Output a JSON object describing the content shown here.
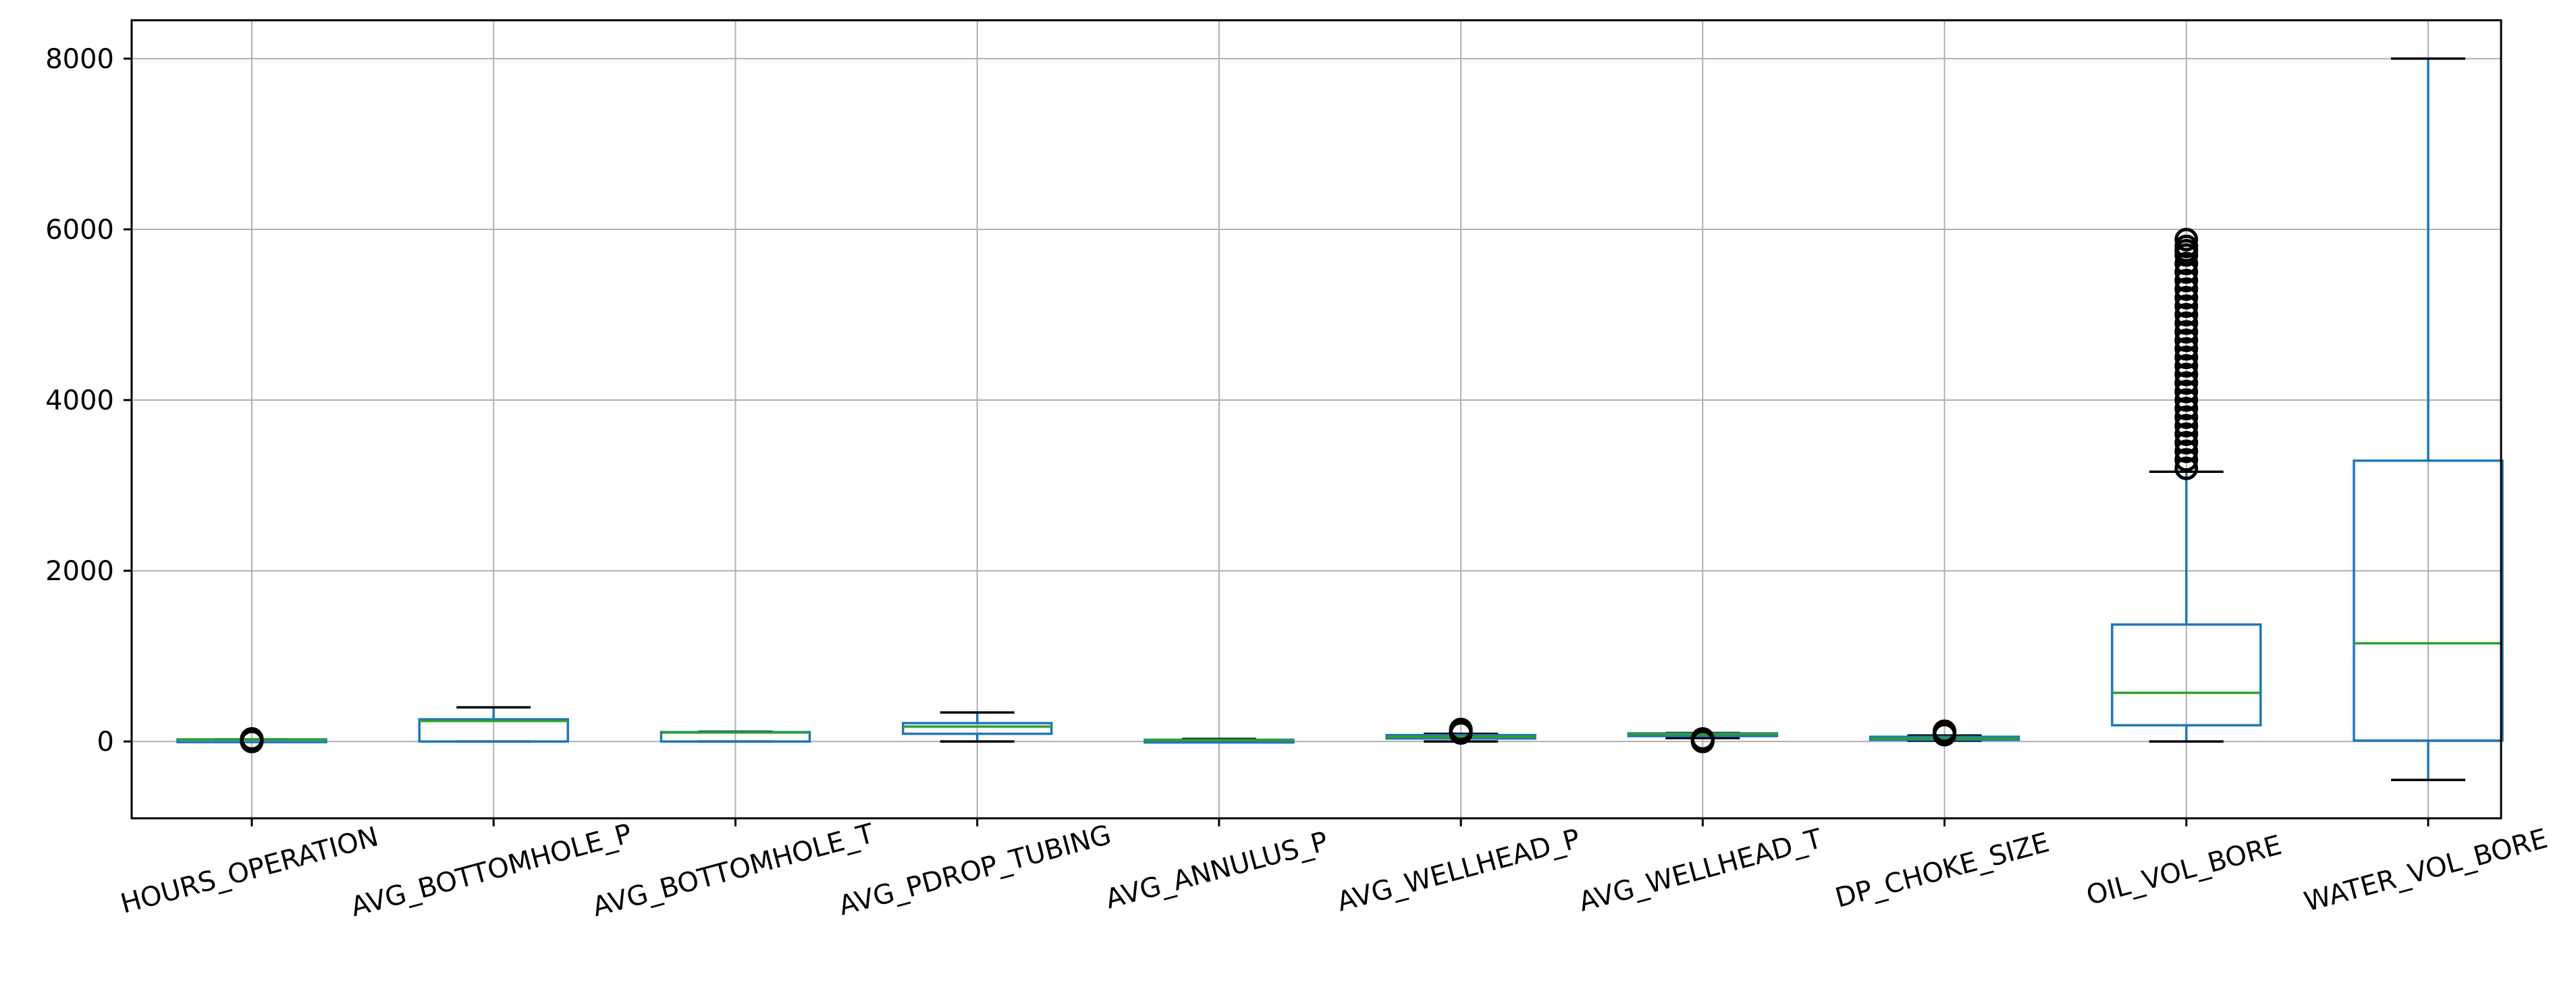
{
  "chart_data": {
    "type": "box",
    "title": "",
    "xlabel": "",
    "ylabel": "",
    "ylim": [
      -900,
      8450
    ],
    "yticks": [
      0,
      2000,
      4000,
      6000,
      8000
    ],
    "grid": true,
    "colors": {
      "box": "#1f77b4",
      "median": "#2ca02c",
      "cap": "#000000",
      "flier": "#000000"
    },
    "categories": [
      "HOURS_OPERATION",
      "AVG_BOTTOMHOLE_P",
      "AVG_BOTTOMHOLE_T",
      "AVG_PDROP_TUBING",
      "AVG_ANNULUS_P",
      "AVG_WELLHEAD_P",
      "AVG_WELLHEAD_T",
      "DP_CHOKE_SIZE",
      "OIL_VOL_BORE",
      "WATER_VOL_BORE"
    ],
    "boxes": [
      {
        "whislo": 24,
        "q1": 24,
        "med": 24,
        "q3": 24,
        "whishi": 24,
        "fliers": [
          0,
          5,
          10,
          15,
          20,
          28,
          30
        ]
      },
      {
        "whislo": 0,
        "q1": 0,
        "med": 240,
        "q3": 260,
        "whishi": 400,
        "fliers": []
      },
      {
        "whislo": 0,
        "q1": 0,
        "med": 105,
        "q3": 110,
        "whishi": 115,
        "fliers": []
      },
      {
        "whislo": 0,
        "q1": 90,
        "med": 175,
        "q3": 215,
        "whishi": 340,
        "fliers": []
      },
      {
        "whislo": 0,
        "q1": 5,
        "med": 15,
        "q3": 20,
        "whishi": 30,
        "fliers": []
      },
      {
        "whislo": 0,
        "q1": 35,
        "med": 55,
        "q3": 75,
        "whishi": 90,
        "fliers": [
          100,
          110,
          120,
          130,
          140
        ]
      },
      {
        "whislo": 40,
        "q1": 75,
        "med": 85,
        "q3": 95,
        "whishi": 100,
        "fliers": [
          0,
          5,
          10,
          15,
          20,
          25,
          30
        ]
      },
      {
        "whislo": 10,
        "q1": 20,
        "med": 35,
        "q3": 55,
        "whishi": 70,
        "fliers": [
          80,
          90,
          100,
          110,
          120
        ]
      },
      {
        "whislo": 0,
        "q1": 190,
        "med": 570,
        "q3": 1370,
        "whishi": 3160,
        "fliers": [
          3200,
          3300,
          3400,
          3500,
          3600,
          3700,
          3800,
          3900,
          4000,
          4100,
          4200,
          4300,
          4400,
          4500,
          4600,
          4700,
          4800,
          4900,
          5000,
          5100,
          5200,
          5300,
          5400,
          5500,
          5600,
          5700,
          5750,
          5800,
          5880
        ]
      },
      {
        "whislo": -450,
        "q1": 10,
        "med": 1150,
        "q3": 3290,
        "whishi": 8000,
        "fliers": []
      }
    ]
  }
}
